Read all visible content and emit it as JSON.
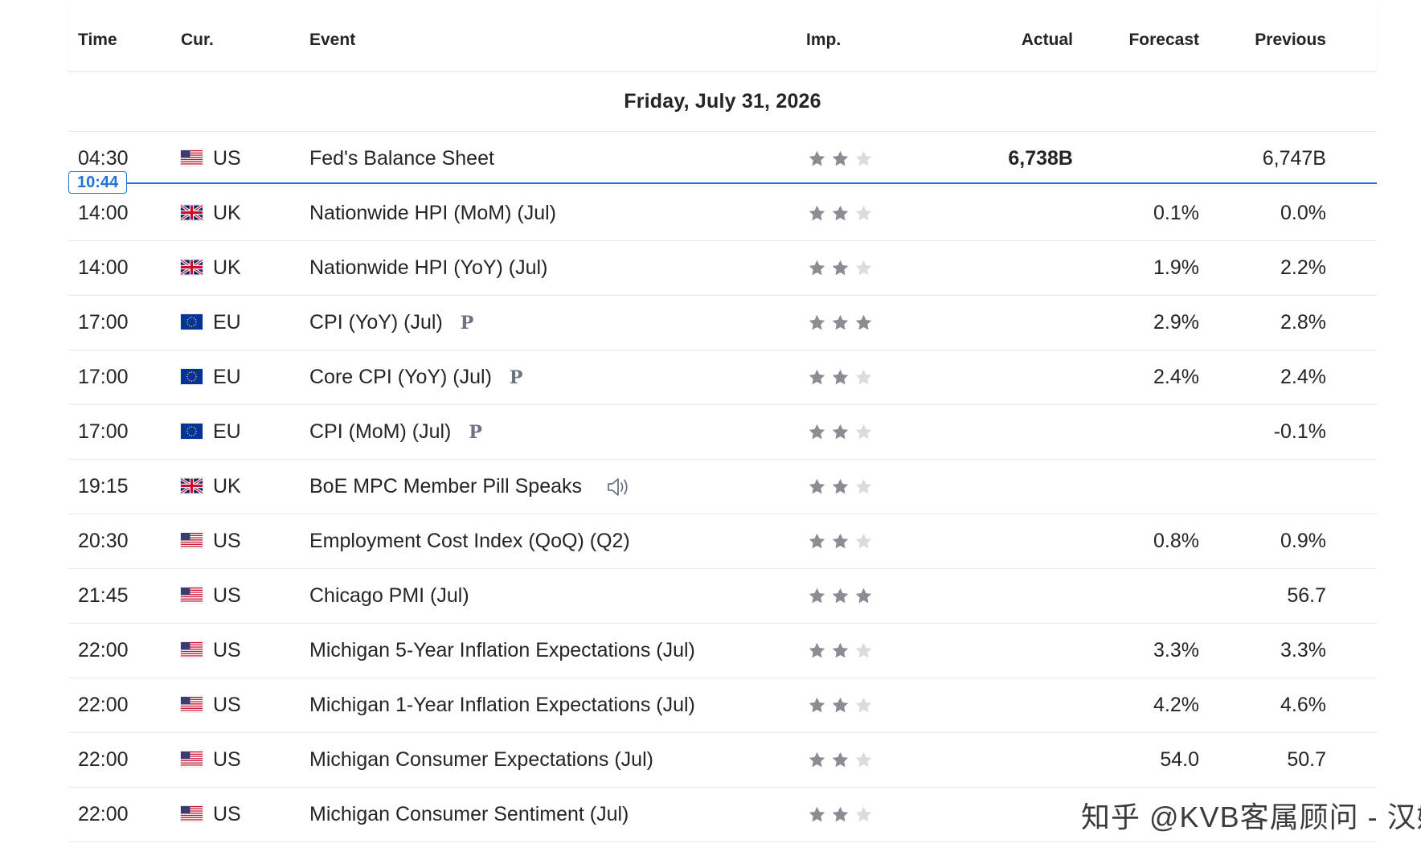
{
  "header": {
    "time": "Time",
    "currency": "Cur.",
    "event": "Event",
    "importance": "Imp.",
    "actual": "Actual",
    "forecast": "Forecast",
    "previous": "Previous"
  },
  "day_label": "Friday, July 31, 2026",
  "now_marker": {
    "time": "10:44"
  },
  "colors": {
    "accent": "#1e73d8",
    "star_on": "#8a8e94",
    "star_off": "#dadde0"
  },
  "rows": [
    {
      "time": "04:30",
      "flag": "us-flag-icon",
      "currency": "US",
      "event": "Fed's Balance Sheet",
      "importance": 2,
      "actual": "6,738B",
      "forecast": "",
      "previous": "6,747B"
    },
    {
      "time": "14:00",
      "flag": "uk-flag-icon",
      "currency": "UK",
      "event": "Nationwide HPI (MoM) (Jul)",
      "importance": 2,
      "actual": "",
      "forecast": "0.1%",
      "previous": "0.0%"
    },
    {
      "time": "14:00",
      "flag": "uk-flag-icon",
      "currency": "UK",
      "event": "Nationwide HPI (YoY) (Jul)",
      "importance": 2,
      "actual": "",
      "forecast": "1.9%",
      "previous": "2.2%"
    },
    {
      "time": "17:00",
      "flag": "eu-flag-icon",
      "currency": "EU",
      "event": "CPI (YoY) (Jul)",
      "badge": "P",
      "importance": 3,
      "actual": "",
      "forecast": "2.9%",
      "previous": "2.8%"
    },
    {
      "time": "17:00",
      "flag": "eu-flag-icon",
      "currency": "EU",
      "event": "Core CPI (YoY) (Jul)",
      "badge": "P",
      "importance": 2,
      "actual": "",
      "forecast": "2.4%",
      "previous": "2.4%"
    },
    {
      "time": "17:00",
      "flag": "eu-flag-icon",
      "currency": "EU",
      "event": "CPI (MoM) (Jul)",
      "badge": "P",
      "importance": 2,
      "actual": "",
      "forecast": "",
      "previous": "-0.1%"
    },
    {
      "time": "19:15",
      "flag": "uk-flag-icon",
      "currency": "UK",
      "event": "BoE MPC Member Pill Speaks",
      "speech": true,
      "importance": 2,
      "actual": "",
      "forecast": "",
      "previous": ""
    },
    {
      "time": "20:30",
      "flag": "us-flag-icon",
      "currency": "US",
      "event": "Employment Cost Index (QoQ) (Q2)",
      "importance": 2,
      "actual": "",
      "forecast": "0.8%",
      "previous": "0.9%"
    },
    {
      "time": "21:45",
      "flag": "us-flag-icon",
      "currency": "US",
      "event": "Chicago PMI  (Jul)",
      "importance": 3,
      "actual": "",
      "forecast": "",
      "previous": "56.7"
    },
    {
      "time": "22:00",
      "flag": "us-flag-icon",
      "currency": "US",
      "event": "Michigan 5-Year Inflation Expectations  (Jul)",
      "importance": 2,
      "actual": "",
      "forecast": "3.3%",
      "previous": "3.3%"
    },
    {
      "time": "22:00",
      "flag": "us-flag-icon",
      "currency": "US",
      "event": "Michigan 1-Year Inflation Expectations  (Jul)",
      "importance": 2,
      "actual": "",
      "forecast": "4.2%",
      "previous": "4.6%"
    },
    {
      "time": "22:00",
      "flag": "us-flag-icon",
      "currency": "US",
      "event": "Michigan Consumer Expectations  (Jul)",
      "importance": 2,
      "actual": "",
      "forecast": "54.0",
      "previous": "50.7"
    },
    {
      "time": "22:00",
      "flag": "us-flag-icon",
      "currency": "US",
      "event": "Michigan Consumer Sentiment  (Jul)",
      "importance": 2,
      "actual": "",
      "forecast": "",
      "previous": ""
    }
  ],
  "watermark": "知乎 @KVB客属顾问 - 汉娜"
}
